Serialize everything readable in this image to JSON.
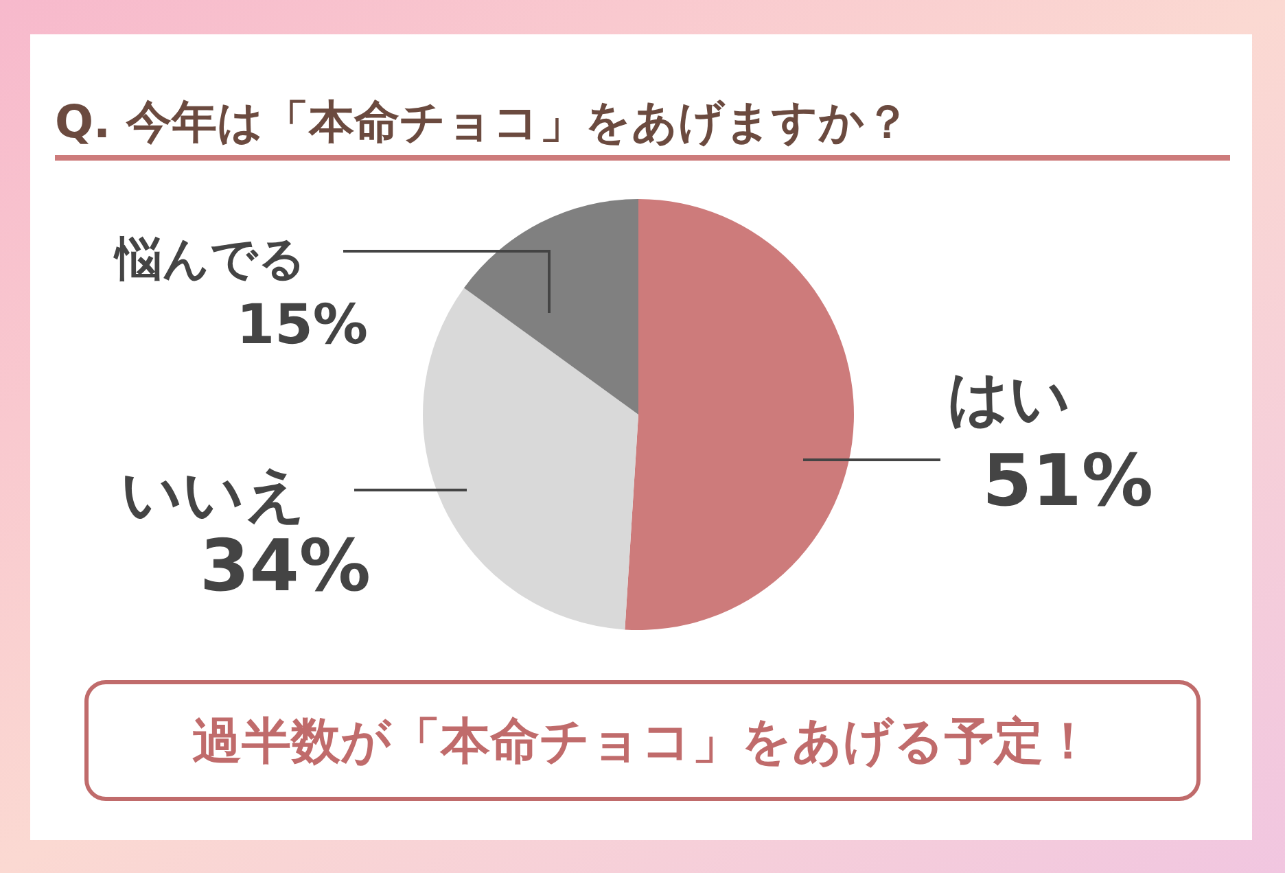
{
  "chart_data": {
    "type": "pie",
    "title": "Q. 今年は「本命チョコ」をあげますか？",
    "categories": [
      "はい",
      "いいえ",
      "悩んでる"
    ],
    "values": [
      51,
      34,
      15
    ],
    "value_labels": [
      "51%",
      "34%",
      "15%"
    ],
    "colors": [
      "#cd7b7b",
      "#d9d9d9",
      "#808080"
    ],
    "annotations": [
      "過半数が「本命チョコ」をあげる予定！"
    ]
  }
}
